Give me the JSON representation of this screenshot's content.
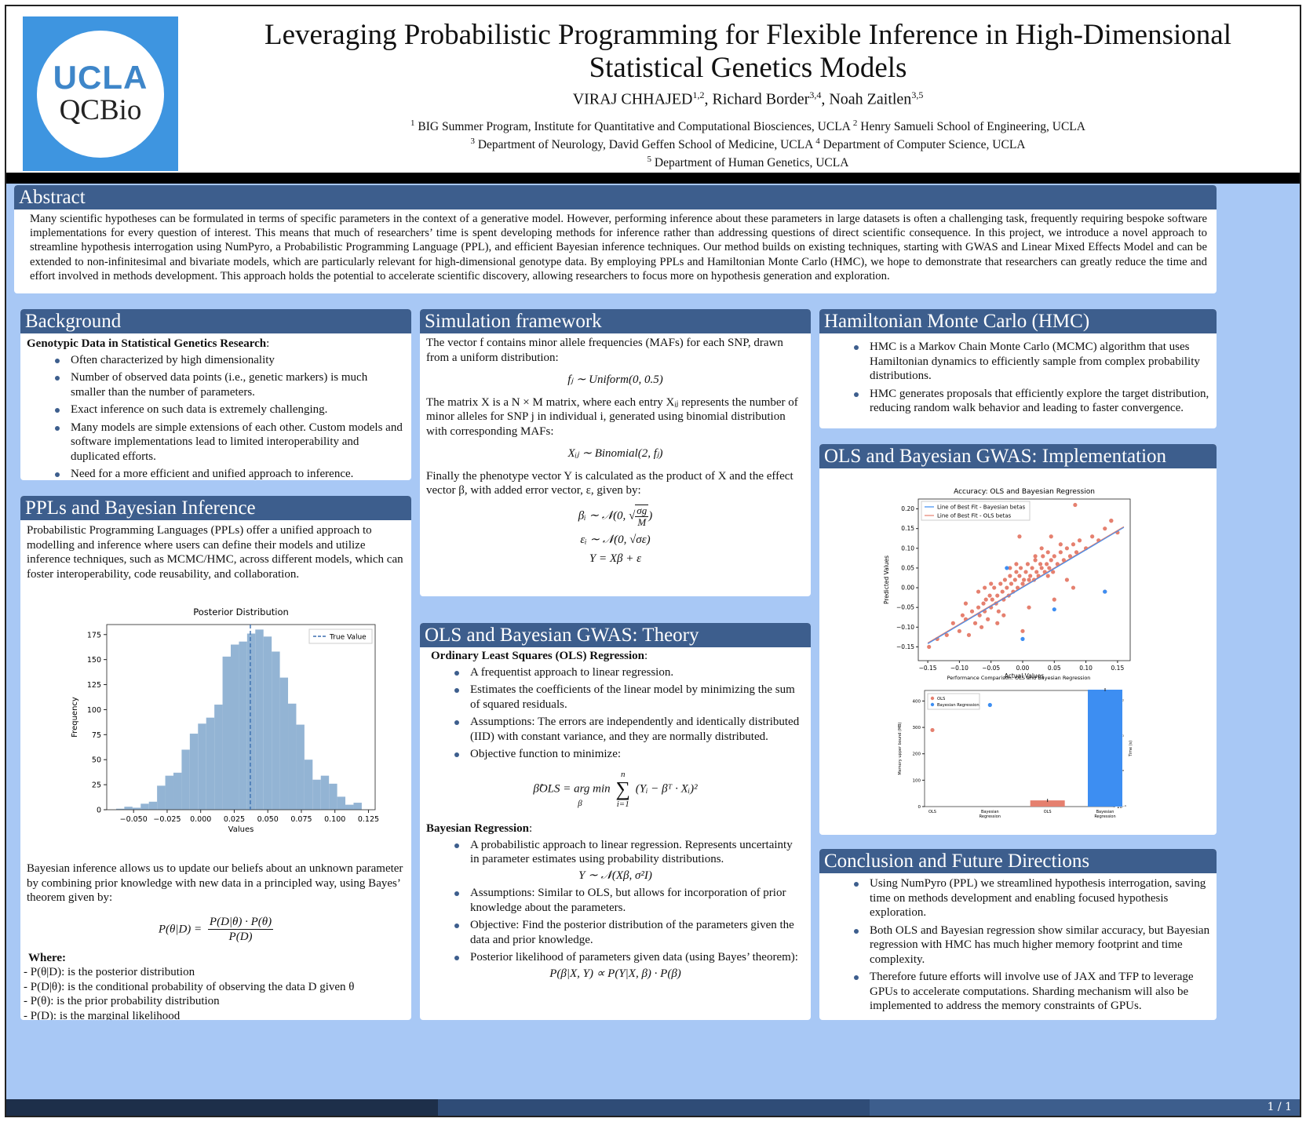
{
  "header": {
    "logo": {
      "line1": "UCLA",
      "line2": "QCBio"
    },
    "title_line1": "Leveraging Probabilistic Programming for Flexible Inference in High-Dimensional",
    "title_line2": "Statistical Genetics Models",
    "authors": [
      {
        "name": "VIRAJ CHHAJED",
        "sup": "1,2"
      },
      {
        "name": "Richard Border",
        "sup": "3,4"
      },
      {
        "name": "Noah Zaitlen",
        "sup": "3,5"
      }
    ],
    "affiliations_line1": [
      {
        "sup": "1",
        "text": "BIG Summer Program, Institute for Quantitative and Computational Biosciences, UCLA"
      },
      {
        "sup": "2",
        "text": "Henry Samueli School of Engineering, UCLA"
      }
    ],
    "affiliations_line2": [
      {
        "sup": "3",
        "text": "Department of Neurology, David Geffen School of Medicine, UCLA"
      },
      {
        "sup": "4",
        "text": "Department of Computer Science, UCLA"
      }
    ],
    "affiliations_line3": [
      {
        "sup": "5",
        "text": "Department of Human Genetics, UCLA"
      }
    ]
  },
  "abstract": {
    "title": "Abstract",
    "text": "Many scientific hypotheses can be formulated in terms of specific parameters in the context of a generative model. However, performing inference about these parameters in large datasets is often a challenging task, frequently requiring bespoke software implementations for every question of interest. This means that much of researchers’ time is spent developing methods for inference rather than addressing questions of direct scientific consequence. In this project, we introduce a novel approach to streamline hypothesis interrogation using NumPyro, a Probabilistic Programming Language (PPL), and efficient Bayesian inference techniques. Our method builds on existing techniques, starting with GWAS and Linear Mixed Effects Model and can be extended to non-infinitesimal and bivariate models, which are particularly relevant for high-dimensional genotype data. By employing PPLs and Hamiltonian Monte Carlo (HMC), we hope to demonstrate that researchers can greatly reduce the time and effort involved in methods development. This approach holds the potential to accelerate scientific discovery, allowing researchers to focus more on hypothesis generation and exploration."
  },
  "background": {
    "title": "Background",
    "subtitle": "Genotypic Data in Statistical Genetics Research",
    "items": [
      "Often characterized by high dimensionality",
      "Number of observed data points (i.e., genetic markers) is much smaller than the number of parameters.",
      "Exact inference on such data is extremely challenging.",
      "Many models are simple extensions of each other. Custom models and software implementations lead to limited interoperability and duplicated efforts.",
      "Need for a more efficient and unified approach to inference."
    ]
  },
  "ppl": {
    "title": "PPLs and Bayesian Inference",
    "intro": "Probabilistic Programming Languages (PPLs) offer a unified approach to modelling and inference where users can define their models and utilize inference techniques, such as MCMC/HMC, across different models, which can foster interoperability, code reusability, and collaboration.",
    "bayes_text": "Bayesian inference allows us to update our beliefs about an unknown parameter by combining prior knowledge with new data in a principled way, using Bayes’ theorem given by:",
    "equation_lhs": "P(θ|D) =",
    "equation_num": "P(D|θ) · P(θ)",
    "equation_den": "P(D)",
    "where_label": "Where:",
    "where_items": [
      "- P(θ|D): is the posterior distribution",
      "- P(D|θ): is the conditional probability of observing the data D given θ",
      "- P(θ): is the prior probability distribution",
      "- P(D): is the marginal likelihood"
    ]
  },
  "simulation": {
    "title": "Simulation framework",
    "p1": "The vector f contains minor allele frequencies (MAFs) for each SNP, drawn from a uniform distribution:",
    "eq1": "fⱼ ∼ Uniform(0, 0.5)",
    "p2": "The matrix X is a N × M matrix, where each entry Xᵢⱼ represents the number of minor alleles for SNP j in individual i, generated using binomial distribution with corresponding MAFs:",
    "eq2": "Xᵢⱼ ∼ Binomial(2, fⱼ)",
    "p3": "Finally the phenotype vector Y is calculated as the product of X and the effect vector β, with added error vector, ε, given by:",
    "eq3_left": "βᵢ ∼ 𝒩(0,",
    "eq3_num": "σg",
    "eq3_den": "M",
    "eq3_right": ")",
    "eq4": "εᵢ ∼ 𝒩(0, √σε)",
    "eq5": "Y = Xβ + ε"
  },
  "theory": {
    "title": "OLS and Bayesian GWAS: Theory",
    "ols_subtitle": "Ordinary Least Squares (OLS) Regression",
    "ols_items": [
      "A frequentist approach to linear regression.",
      "Estimates the coefficients of the linear model by minimizing the sum of squared residuals.",
      "Assumptions: The errors are independently and identically distributed (IID) with constant variance, and they are normally distributed.",
      "Objective function to minimize:"
    ],
    "ols_eq_left": "β̂OLS = arg min",
    "ols_eq_sub": "β",
    "ols_eq_sum_top": "n",
    "ols_eq_sum_bot": "i=1",
    "ols_eq_body": "(Yᵢ − βᵀ · Xᵢ)²",
    "bayes_subtitle": "Bayesian Regression",
    "bayes_items": [
      "A probabilistic approach to linear regression. Represents uncertainty in parameter estimates using probability distributions.",
      "Assumptions: Similar to OLS, but allows for incorporation of prior knowledge about the parameters.",
      "Objective: Find the posterior distribution of the parameters given the data and prior knowledge.",
      "Posterior likelihood of parameters given data (using Bayes’ theorem):"
    ],
    "bayes_eq1": "Y ∼ 𝒩(Xβ, σ²I)",
    "bayes_eq2": "P(β|X, Y) ∝ P(Y|X, β) · P(β)"
  },
  "hmc": {
    "title": "Hamiltonian Monte Carlo (HMC)",
    "items": [
      "HMC is a Markov Chain Monte Carlo (MCMC) algorithm that uses Hamiltonian dynamics to efficiently sample from complex probability distributions.",
      "HMC generates proposals that efficiently explore the target distribution, reducing random walk behavior and leading to faster convergence."
    ]
  },
  "implementation": {
    "title": "OLS and Bayesian GWAS: Implementation"
  },
  "conclusion": {
    "title": "Conclusion and Future Directions",
    "items": [
      "Using NumPyro (PPL) we streamlined hypothesis interrogation, saving time on methods development and enabling focused hypothesis exploration.",
      "Both OLS and Bayesian regression show similar accuracy, but Bayesian regression with HMC has much higher memory footprint and time complexity.",
      "Therefore future efforts will involve use of JAX and TFP to leverage GPUs to accelerate computations. Sharding mechanism will also be implemented to address the memory constraints of GPUs."
    ]
  },
  "footer": {
    "page": "1 / 1"
  },
  "colors": {
    "block_title": "#3d5e8d",
    "poster_bg": "#a8c8f5",
    "hist_bar": "#93b4d4",
    "ols": "#e5806f",
    "bayes": "#3d8ef2"
  },
  "chart_data": [
    {
      "type": "bar",
      "title": "Posterior Distribution",
      "xlabel": "Values",
      "ylabel": "Frequency",
      "xlim": [
        -0.07,
        0.13
      ],
      "ylim": [
        0,
        185
      ],
      "xticks": [
        -0.05,
        -0.025,
        0.0,
        0.025,
        0.05,
        0.075,
        0.1,
        0.125
      ],
      "xtick_labels": [
        "−0.050",
        "−0.025",
        "0.000",
        "0.025",
        "0.050",
        "0.075",
        "0.100",
        "0.125"
      ],
      "yticks": [
        0,
        25,
        50,
        75,
        100,
        125,
        150,
        175
      ],
      "bin_start": -0.063,
      "bin_width": 0.0061,
      "values": [
        1,
        3,
        2,
        6,
        8,
        24,
        34,
        37,
        60,
        76,
        86,
        92,
        105,
        153,
        165,
        168,
        176,
        180,
        173,
        158,
        132,
        106,
        85,
        50,
        30,
        34,
        26,
        13,
        5,
        7
      ],
      "true_value": 0.037,
      "legend": "True Value",
      "legend_position": "top-right"
    },
    {
      "type": "scatter",
      "title": "Accuracy: OLS and Bayesian Regression",
      "xlabel": "Actual Values",
      "ylabel": "Predicted Values",
      "xlim": [
        -0.165,
        0.17
      ],
      "ylim": [
        -0.185,
        0.225
      ],
      "xticks": [
        -0.15,
        -0.1,
        -0.05,
        0.0,
        0.05,
        0.1,
        0.15
      ],
      "xtick_labels": [
        "−0.15",
        "−0.10",
        "−0.05",
        "0.00",
        "0.05",
        "0.10",
        "0.15"
      ],
      "yticks": [
        -0.15,
        -0.1,
        -0.05,
        0.0,
        0.05,
        0.1,
        0.15,
        0.2
      ],
      "ytick_labels": [
        "−0.15",
        "−0.10",
        "−0.05",
        "0.00",
        "0.05",
        "0.10",
        "0.15",
        "0.20"
      ],
      "legend": [
        "Line of Best Fit - Bayesian betas",
        "Line of Best Fit - OLS betas"
      ],
      "legend_position": "top-left",
      "series": [
        {
          "name": "OLS betas",
          "color": "#e5806f",
          "x": [
            -0.148,
            -0.135,
            -0.12,
            -0.11,
            -0.1,
            -0.095,
            -0.09,
            -0.085,
            -0.08,
            -0.075,
            -0.07,
            -0.068,
            -0.065,
            -0.062,
            -0.06,
            -0.058,
            -0.055,
            -0.052,
            -0.05,
            -0.048,
            -0.045,
            -0.042,
            -0.04,
            -0.038,
            -0.035,
            -0.032,
            -0.03,
            -0.028,
            -0.025,
            -0.022,
            -0.02,
            -0.018,
            -0.015,
            -0.012,
            -0.01,
            -0.008,
            -0.005,
            -0.003,
            0.0,
            0.002,
            0.005,
            0.008,
            0.01,
            0.012,
            0.015,
            0.018,
            0.02,
            0.022,
            0.025,
            0.028,
            0.03,
            0.032,
            0.035,
            0.038,
            0.04,
            0.042,
            0.045,
            0.048,
            0.05,
            0.055,
            0.06,
            0.065,
            0.07,
            0.075,
            0.08,
            0.085,
            0.09,
            0.1,
            0.11,
            0.12,
            0.13,
            0.14,
            0.15,
            -0.07,
            -0.05,
            -0.03,
            -0.01,
            0.01,
            0.03,
            0.05,
            0.07,
            -0.09,
            -0.06,
            -0.04,
            -0.02,
            0.0,
            0.02,
            0.04,
            0.06,
            0.08,
            0.083,
            -0.005,
            0.13,
            0.045,
            0.14
          ],
          "y": [
            -0.15,
            -0.13,
            -0.12,
            -0.09,
            -0.11,
            -0.07,
            -0.08,
            -0.12,
            -0.06,
            -0.09,
            -0.05,
            -0.07,
            -0.1,
            -0.04,
            -0.06,
            -0.03,
            -0.08,
            -0.02,
            -0.05,
            -0.03,
            0.0,
            -0.04,
            -0.02,
            -0.06,
            0.01,
            -0.01,
            -0.03,
            0.02,
            0.0,
            -0.02,
            0.03,
            0.01,
            -0.01,
            0.02,
            0.04,
            0.0,
            0.03,
            0.05,
            0.01,
            0.02,
            0.04,
            0.06,
            0.02,
            0.03,
            0.05,
            0.02,
            0.07,
            0.04,
            0.03,
            0.06,
            0.05,
            0.08,
            0.04,
            0.06,
            0.09,
            0.05,
            0.07,
            0.04,
            0.08,
            0.06,
            0.09,
            0.07,
            0.1,
            0.08,
            0.11,
            0.09,
            0.12,
            0.1,
            0.13,
            0.12,
            0.15,
            0.17,
            0.14,
            -0.01,
            0.01,
            -0.07,
            0.06,
            -0.05,
            0.1,
            -0.03,
            0.02,
            -0.04,
            0.0,
            -0.09,
            0.05,
            -0.11,
            0.08,
            0.03,
            0.11,
            0.0,
            0.21,
            0.13,
            -0.01,
            0.13,
            0.17
          ]
        },
        {
          "name": "Bayesian betas",
          "color": "#3d8ef2",
          "x": [
            -0.025,
            0.0,
            0.05,
            0.13
          ],
          "y": [
            0.05,
            -0.13,
            -0.055,
            -0.01
          ]
        }
      ],
      "lines": [
        {
          "name": "Line of Best Fit - OLS betas",
          "color": "#e5806f",
          "x": [
            -0.15,
            0.16
          ],
          "y": [
            -0.14,
            0.155
          ]
        },
        {
          "name": "Line of Best Fit - Bayesian betas",
          "color": "#3d8ef2",
          "x": [
            -0.15,
            0.16
          ],
          "y": [
            -0.142,
            0.153
          ]
        }
      ]
    },
    {
      "type": "bar",
      "title": "Performance Comparison: OLS and Bayesian Regression",
      "legend": [
        "OLS",
        "Bayesian Regression"
      ],
      "legend_position": "top-left",
      "categories": [
        "OLS",
        "Bayesian\nRegression",
        "OLS",
        "Bayesian\nRegression"
      ],
      "memory_axis_label": "Memory upper bound (MB)",
      "time_axis_label": "Time (s)",
      "memory_yticks": [
        0,
        100,
        200,
        300,
        400
      ],
      "memory_ylim": [
        0,
        440
      ],
      "memory_points": [
        {
          "series": "OLS",
          "value": 290
        },
        {
          "series": "Bayesian Regression",
          "value": 385
        }
      ],
      "time_tick_labels": [
        "10⁻¹",
        "10⁰",
        "10¹",
        "10²"
      ],
      "time_ylim_log": [
        -1,
        2.3
      ],
      "time_bars_log": [
        {
          "series": "OLS",
          "value": 0.15
        },
        {
          "series": "Bayesian Regression",
          "value": 210
        }
      ]
    }
  ]
}
